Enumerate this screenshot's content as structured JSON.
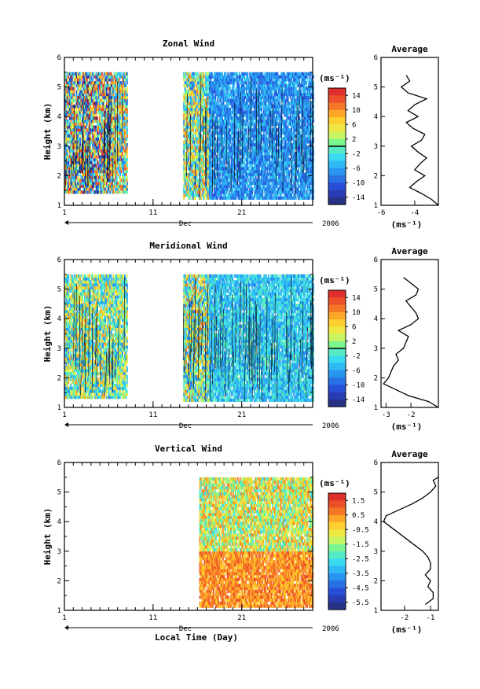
{
  "figure": {
    "xlabel": "Local Time (Day)",
    "month_label": "Dec",
    "year_label": "2006",
    "colorbar_unit": "(ms⁻¹)",
    "average_title": "Average",
    "average_unit": "(ms⁻¹)"
  },
  "chart_data": [
    {
      "type": "heatmap",
      "title": "Zonal Wind",
      "ylabel": "Height (km)",
      "xlim": [
        1,
        29
      ],
      "ylim": [
        1,
        6
      ],
      "x_ticks": [
        "1",
        "11",
        "21"
      ],
      "x_tick_values": [
        1,
        11,
        21
      ],
      "y_ticks": [
        "1",
        "2",
        "3",
        "4",
        "5",
        "6"
      ],
      "colorbar": {
        "ticks": [
          "14",
          "10",
          "6",
          "2",
          "-2",
          "-6",
          "-10",
          "-14"
        ],
        "range": [
          -16,
          16
        ],
        "zero_line": true
      },
      "observed_periods": [
        {
          "start": 1.0,
          "end": 6.3,
          "from_km": 1.4,
          "to_km": 5.4,
          "mean": 0,
          "spread": 16
        },
        {
          "start": 6.3,
          "end": 8.0,
          "from_km": 1.4,
          "to_km": 5.4,
          "mean": 2,
          "spread": 12
        },
        {
          "start": 14.4,
          "end": 17.3,
          "from_km": 1.2,
          "to_km": 5.4,
          "mean": 1,
          "spread": 10
        },
        {
          "start": 17.3,
          "end": 29.0,
          "from_km": 1.2,
          "to_km": 5.4,
          "mean": -7,
          "spread": 4
        }
      ],
      "average_profile": {
        "xlim": [
          -6,
          -2.6
        ],
        "x_ticks": [
          "-6",
          "-4"
        ],
        "x_tick_values": [
          -6,
          -4
        ],
        "height_km": [
          1.0,
          1.2,
          1.4,
          1.6,
          1.8,
          2.0,
          2.2,
          2.4,
          2.6,
          2.8,
          3.0,
          3.2,
          3.4,
          3.6,
          3.8,
          4.0,
          4.2,
          4.4,
          4.6,
          4.8,
          5.0,
          5.2,
          5.4
        ],
        "value": [
          -2.6,
          -3.0,
          -3.6,
          -4.3,
          -3.9,
          -3.4,
          -4.0,
          -3.7,
          -3.3,
          -3.8,
          -4.2,
          -3.6,
          -3.4,
          -4.1,
          -4.5,
          -3.8,
          -4.4,
          -4.0,
          -3.3,
          -4.4,
          -4.8,
          -4.3,
          -4.5
        ]
      }
    },
    {
      "type": "heatmap",
      "title": "Meridional Wind",
      "ylabel": "Height (km)",
      "xlim": [
        1,
        29
      ],
      "ylim": [
        1,
        6
      ],
      "x_ticks": [
        "1",
        "11",
        "21"
      ],
      "x_tick_values": [
        1,
        11,
        21
      ],
      "y_ticks": [
        "1",
        "2",
        "3",
        "4",
        "5",
        "6"
      ],
      "colorbar": {
        "ticks": [
          "14",
          "10",
          "6",
          "2",
          "-2",
          "-6",
          "-10",
          "-14"
        ],
        "range": [
          -16,
          16
        ],
        "zero_line": true
      },
      "observed_periods": [
        {
          "start": 1.0,
          "end": 6.3,
          "from_km": 1.3,
          "to_km": 5.4,
          "mean": 1,
          "spread": 9
        },
        {
          "start": 6.3,
          "end": 8.0,
          "from_km": 1.3,
          "to_km": 5.4,
          "mean": 0,
          "spread": 8
        },
        {
          "start": 14.4,
          "end": 17.3,
          "from_km": 1.2,
          "to_km": 5.4,
          "mean": 1,
          "spread": 10
        },
        {
          "start": 17.3,
          "end": 29.0,
          "from_km": 1.2,
          "to_km": 5.4,
          "mean": -4,
          "spread": 4
        }
      ],
      "average_profile": {
        "xlim": [
          -3.2,
          -0.9
        ],
        "x_ticks": [
          "-3",
          "-2"
        ],
        "x_tick_values": [
          -3,
          -2
        ],
        "height_km": [
          1.0,
          1.2,
          1.4,
          1.6,
          1.8,
          2.0,
          2.2,
          2.4,
          2.6,
          2.8,
          3.0,
          3.2,
          3.4,
          3.6,
          3.8,
          4.0,
          4.2,
          4.4,
          4.6,
          4.8,
          5.0,
          5.2,
          5.4
        ],
        "value": [
          -0.9,
          -1.3,
          -2.1,
          -2.6,
          -3.1,
          -2.9,
          -2.8,
          -2.7,
          -2.5,
          -2.6,
          -2.3,
          -2.2,
          -2.1,
          -2.5,
          -2.0,
          -1.7,
          -1.8,
          -2.0,
          -2.2,
          -1.8,
          -1.7,
          -2.0,
          -2.3
        ]
      }
    },
    {
      "type": "heatmap",
      "title": "Vertical Wind",
      "ylabel": "Height (km)",
      "xlim": [
        1,
        29
      ],
      "ylim": [
        1,
        6
      ],
      "x_ticks": [
        "1",
        "11",
        "21"
      ],
      "x_tick_values": [
        1,
        11,
        21
      ],
      "y_ticks": [
        "1",
        "2",
        "3",
        "4",
        "5",
        "6"
      ],
      "colorbar": {
        "ticks": [
          "1.5",
          "0.5",
          "-0.5",
          "-1.5",
          "-2.5",
          "-3.5",
          "-4.5",
          "-5.5"
        ],
        "range": [
          -6,
          2
        ],
        "zero_line": false
      },
      "observed_periods": [
        {
          "start": 16.2,
          "end": 29.0,
          "from_km": 1.1,
          "to_km": 3.0,
          "mean": 0.5,
          "spread": 0.8
        },
        {
          "start": 16.2,
          "end": 29.0,
          "from_km": 3.0,
          "to_km": 5.4,
          "mean": -1.0,
          "spread": 1.8
        }
      ],
      "average_profile": {
        "xlim": [
          -2.9,
          -0.7
        ],
        "x_ticks": [
          "-2",
          "-1"
        ],
        "x_tick_values": [
          -2,
          -1
        ],
        "height_km": [
          1.2,
          1.4,
          1.6,
          1.8,
          2.0,
          2.2,
          2.4,
          2.6,
          2.8,
          3.0,
          3.2,
          3.4,
          3.6,
          3.8,
          4.0,
          4.2,
          4.4,
          4.6,
          4.8,
          5.0,
          5.2,
          5.4,
          5.5
        ],
        "value": [
          -1.2,
          -0.9,
          -0.9,
          -1.1,
          -1.0,
          -1.2,
          -1.0,
          -1.0,
          -1.1,
          -1.3,
          -1.6,
          -1.9,
          -2.2,
          -2.5,
          -2.8,
          -2.7,
          -2.2,
          -1.7,
          -1.3,
          -1.0,
          -0.8,
          -0.9,
          -0.7
        ]
      }
    }
  ]
}
